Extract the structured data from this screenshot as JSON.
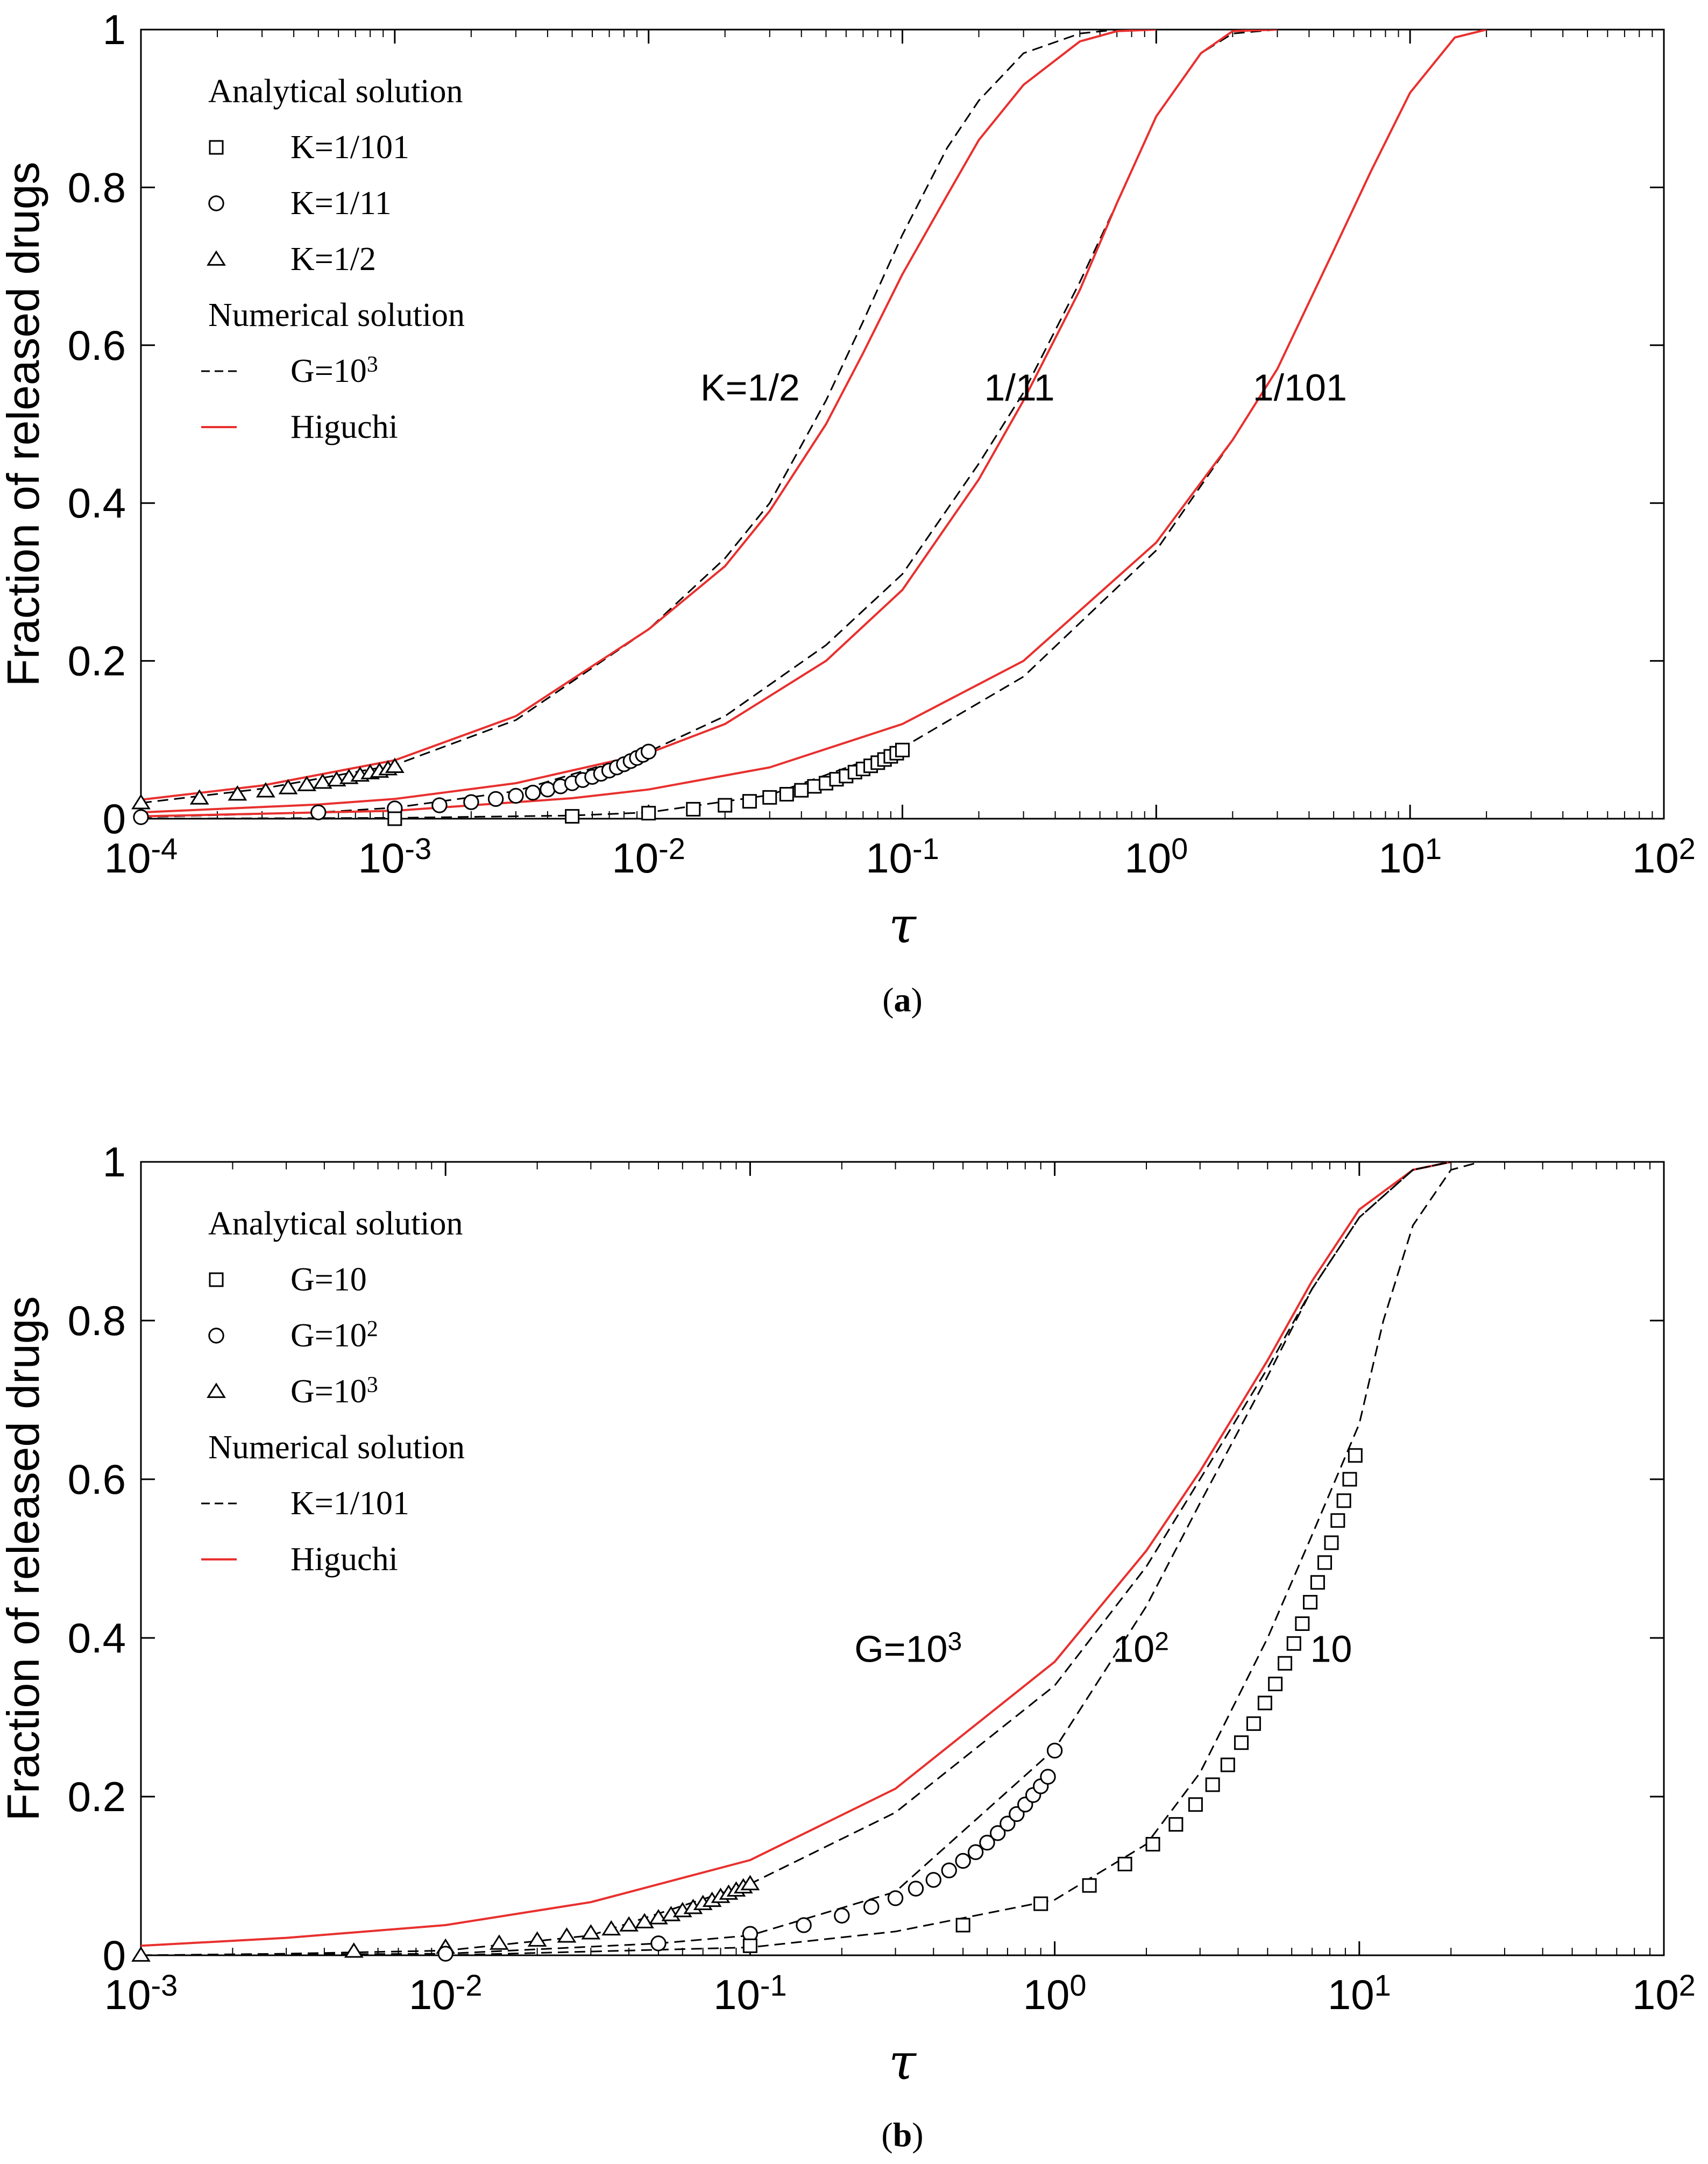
{
  "chart_data": [
    {
      "type": "line",
      "panel": "a",
      "caption": "(a)",
      "xlabel": "τ",
      "ylabel": "Fraction of released drugs",
      "xscale": "log",
      "xlim": [
        0.0001,
        100
      ],
      "ylim": [
        0,
        1
      ],
      "grid": false,
      "legend_position": "top-left",
      "xtick_labels": [
        {
          "base": "10",
          "exp": "-4"
        },
        {
          "base": "10",
          "exp": "-3"
        },
        {
          "base": "10",
          "exp": "-2"
        },
        {
          "base": "10",
          "exp": "-1"
        },
        {
          "base": "10",
          "exp": "0"
        },
        {
          "base": "10",
          "exp": "1"
        },
        {
          "base": "10",
          "exp": "2"
        }
      ],
      "ytick_labels": [
        "0",
        "0.2",
        "0.4",
        "0.6",
        "0.8",
        "1"
      ],
      "legend": {
        "analytical_title": "Analytical solution",
        "analytical_entries": [
          {
            "marker": "square",
            "text": "K=1/101"
          },
          {
            "marker": "circle",
            "text": "K=1/11"
          },
          {
            "marker": "triangle",
            "text": "K=1/2"
          }
        ],
        "numerical_title": "Numerical solution",
        "numerical_entries": [
          {
            "style": "dashed",
            "text": "G=10",
            "sup": "3"
          },
          {
            "style": "red",
            "text": "Higuchi",
            "sup": ""
          }
        ]
      },
      "series": [
        {
          "name": "K=1/2 numerical (G=10^3)",
          "style": "dashed",
          "x": [
            0.0001,
            0.0003,
            0.001,
            0.003,
            0.01,
            0.02,
            0.03,
            0.05,
            0.07,
            0.1,
            0.15,
            0.2,
            0.3,
            0.5,
            0.7,
            1.0
          ],
          "y": [
            0.02,
            0.038,
            0.068,
            0.125,
            0.24,
            0.33,
            0.4,
            0.53,
            0.63,
            0.74,
            0.85,
            0.91,
            0.97,
            0.995,
            1.0,
            1.0
          ]
        },
        {
          "name": "K=1/2 Higuchi",
          "style": "red",
          "x": [
            0.0001,
            0.0003,
            0.001,
            0.003,
            0.01,
            0.02,
            0.03,
            0.05,
            0.07,
            0.1,
            0.15,
            0.2,
            0.3,
            0.5,
            0.7,
            1.0
          ],
          "y": [
            0.024,
            0.042,
            0.074,
            0.13,
            0.24,
            0.32,
            0.39,
            0.5,
            0.59,
            0.69,
            0.79,
            0.86,
            0.93,
            0.985,
            0.998,
            1.0
          ]
        },
        {
          "name": "K=1/11 numerical (G=10^3)",
          "style": "dashed",
          "x": [
            0.0001,
            0.0005,
            0.001,
            0.003,
            0.01,
            0.02,
            0.05,
            0.1,
            0.2,
            0.3,
            0.5,
            0.7,
            1.0,
            1.5,
            2.0,
            3.0
          ],
          "y": [
            0.002,
            0.008,
            0.014,
            0.035,
            0.085,
            0.13,
            0.22,
            0.31,
            0.45,
            0.54,
            0.68,
            0.78,
            0.89,
            0.97,
            0.995,
            1.0
          ]
        },
        {
          "name": "K=1/11 Higuchi",
          "style": "red",
          "x": [
            0.0001,
            0.0005,
            0.001,
            0.003,
            0.01,
            0.02,
            0.05,
            0.1,
            0.2,
            0.3,
            0.5,
            0.7,
            1.0,
            1.5,
            2.0,
            3.0
          ],
          "y": [
            0.008,
            0.018,
            0.025,
            0.045,
            0.083,
            0.12,
            0.2,
            0.29,
            0.43,
            0.53,
            0.67,
            0.78,
            0.89,
            0.97,
            0.998,
            1.0
          ]
        },
        {
          "name": "K=1/101 numerical (G=10^3)",
          "style": "dashed",
          "x": [
            0.0001,
            0.001,
            0.005,
            0.01,
            0.03,
            0.1,
            0.3,
            1.0,
            2.0,
            3.0,
            5.0,
            7.0,
            10.0,
            15.0,
            20.0
          ],
          "y": [
            0.0,
            0.001,
            0.004,
            0.008,
            0.03,
            0.09,
            0.18,
            0.34,
            0.48,
            0.57,
            0.72,
            0.82,
            0.92,
            0.99,
            1.0
          ]
        },
        {
          "name": "K=1/101 Higuchi",
          "style": "red",
          "x": [
            0.0001,
            0.001,
            0.005,
            0.01,
            0.03,
            0.1,
            0.3,
            1.0,
            2.0,
            3.0,
            5.0,
            7.0,
            10.0,
            15.0,
            20.0
          ],
          "y": [
            0.003,
            0.01,
            0.026,
            0.037,
            0.065,
            0.12,
            0.2,
            0.35,
            0.48,
            0.57,
            0.72,
            0.82,
            0.92,
            0.99,
            1.0
          ]
        },
        {
          "name": "K=1/2 analytical",
          "marker": "triangle",
          "x": [
            0.0001,
            0.00017,
            0.00024,
            0.00031,
            0.00038,
            0.00045,
            0.00052,
            0.00059,
            0.00066,
            0.00073,
            0.0008,
            0.00087,
            0.00094,
            0.001
          ],
          "y": [
            0.02,
            0.026,
            0.031,
            0.035,
            0.039,
            0.043,
            0.046,
            0.049,
            0.052,
            0.055,
            0.058,
            0.06,
            0.063,
            0.066
          ]
        },
        {
          "name": "K=1/11 analytical",
          "marker": "circle",
          "x": [
            0.0001,
            0.0005,
            0.001,
            0.0015,
            0.002,
            0.0025,
            0.003,
            0.0035,
            0.004,
            0.0045,
            0.005,
            0.0055,
            0.006,
            0.0065,
            0.007,
            0.0075,
            0.008,
            0.0085,
            0.009,
            0.0095,
            0.01
          ],
          "y": [
            0.002,
            0.008,
            0.013,
            0.017,
            0.021,
            0.025,
            0.029,
            0.033,
            0.037,
            0.041,
            0.045,
            0.049,
            0.053,
            0.057,
            0.061,
            0.065,
            0.069,
            0.073,
            0.077,
            0.081,
            0.085
          ]
        },
        {
          "name": "K=1/101 analytical",
          "marker": "square",
          "x": [
            0.001,
            0.005,
            0.01,
            0.015,
            0.02,
            0.025,
            0.03,
            0.035,
            0.04,
            0.045,
            0.05,
            0.055,
            0.06,
            0.065,
            0.07,
            0.075,
            0.08,
            0.085,
            0.09,
            0.095,
            0.1
          ],
          "y": [
            0.0,
            0.003,
            0.007,
            0.012,
            0.017,
            0.022,
            0.027,
            0.031,
            0.036,
            0.041,
            0.045,
            0.05,
            0.054,
            0.059,
            0.063,
            0.067,
            0.071,
            0.075,
            0.079,
            0.083,
            0.087
          ]
        }
      ],
      "annotations": [
        {
          "text": "K=1/2",
          "x": 0.016,
          "y": 0.53
        },
        {
          "text": "1/11",
          "x": 0.21,
          "y": 0.53
        },
        {
          "text": "1/101",
          "x": 2.4,
          "y": 0.53
        }
      ]
    },
    {
      "type": "line",
      "panel": "b",
      "caption": "(b)",
      "xlabel": "τ",
      "ylabel": "Fraction of released drugs",
      "xscale": "log",
      "xlim": [
        0.001,
        100
      ],
      "ylim": [
        0,
        1
      ],
      "grid": false,
      "legend_position": "top-left",
      "xtick_labels": [
        {
          "base": "10",
          "exp": "-3"
        },
        {
          "base": "10",
          "exp": "-2"
        },
        {
          "base": "10",
          "exp": "-1"
        },
        {
          "base": "10",
          "exp": "0"
        },
        {
          "base": "10",
          "exp": "1"
        },
        {
          "base": "10",
          "exp": "2"
        }
      ],
      "ytick_labels": [
        "0",
        "0.2",
        "0.4",
        "0.6",
        "0.8",
        "1"
      ],
      "legend": {
        "analytical_title": "Analytical solution",
        "analytical_entries": [
          {
            "marker": "square",
            "text": "G=10",
            "sup": ""
          },
          {
            "marker": "circle",
            "text": "G=10",
            "sup": "2"
          },
          {
            "marker": "triangle",
            "text": "G=10",
            "sup": "3"
          }
        ],
        "numerical_title": "Numerical solution",
        "numerical_entries": [
          {
            "style": "dashed",
            "text": "K=1/101",
            "sup": ""
          },
          {
            "style": "red",
            "text": "Higuchi",
            "sup": ""
          }
        ]
      },
      "series": [
        {
          "name": "Higuchi",
          "style": "red",
          "x": [
            0.001,
            0.003,
            0.01,
            0.03,
            0.1,
            0.3,
            1.0,
            2.0,
            3.0,
            5.0,
            7.0,
            10.0,
            15.0,
            20.0
          ],
          "y": [
            0.012,
            0.022,
            0.038,
            0.067,
            0.12,
            0.21,
            0.37,
            0.51,
            0.61,
            0.75,
            0.85,
            0.94,
            0.99,
            1.0
          ]
        },
        {
          "name": "G=10^3 numerical",
          "style": "dashed",
          "x": [
            0.001,
            0.003,
            0.01,
            0.03,
            0.1,
            0.3,
            1.0,
            2.0,
            3.0,
            5.0,
            7.0,
            10.0,
            15.0,
            20.0
          ],
          "y": [
            0.0,
            0.002,
            0.006,
            0.025,
            0.09,
            0.18,
            0.34,
            0.49,
            0.6,
            0.74,
            0.84,
            0.93,
            0.99,
            1.0
          ]
        },
        {
          "name": "G=10^2 numerical",
          "style": "dashed",
          "x": [
            0.001,
            0.01,
            0.05,
            0.1,
            0.3,
            1.0,
            2.0,
            3.0,
            5.0,
            7.0,
            10.0,
            15.0,
            20.0
          ],
          "y": [
            0.0,
            0.002,
            0.015,
            0.025,
            0.08,
            0.26,
            0.44,
            0.57,
            0.73,
            0.84,
            0.93,
            0.99,
            1.0
          ]
        },
        {
          "name": "G=10 numerical",
          "style": "dashed",
          "x": [
            0.001,
            0.01,
            0.1,
            0.3,
            1.0,
            2.0,
            3.0,
            5.0,
            7.0,
            10.0,
            12.0,
            15.0,
            20.0,
            25.0
          ],
          "y": [
            0.0,
            0.0,
            0.01,
            0.03,
            0.07,
            0.14,
            0.23,
            0.4,
            0.53,
            0.67,
            0.8,
            0.92,
            0.99,
            1.0
          ]
        },
        {
          "name": "G=10^3 analytical",
          "marker": "triangle",
          "x": [
            0.001,
            0.005,
            0.01,
            0.015,
            0.02,
            0.025,
            0.03,
            0.035,
            0.04,
            0.045,
            0.05,
            0.055,
            0.06,
            0.065,
            0.07,
            0.075,
            0.08,
            0.085,
            0.09,
            0.095,
            0.1
          ],
          "y": [
            0.0,
            0.005,
            0.01,
            0.015,
            0.019,
            0.024,
            0.028,
            0.033,
            0.038,
            0.042,
            0.047,
            0.051,
            0.056,
            0.06,
            0.065,
            0.069,
            0.074,
            0.078,
            0.082,
            0.086,
            0.09
          ]
        },
        {
          "name": "G=10^2 analytical",
          "marker": "circle",
          "x": [
            0.01,
            0.05,
            0.1,
            0.15,
            0.2,
            0.25,
            0.3,
            0.35,
            0.4,
            0.45,
            0.5,
            0.55,
            0.6,
            0.65,
            0.7,
            0.75,
            0.8,
            0.85,
            0.9,
            0.95,
            1.0
          ],
          "y": [
            0.002,
            0.015,
            0.027,
            0.038,
            0.05,
            0.061,
            0.072,
            0.084,
            0.095,
            0.107,
            0.119,
            0.13,
            0.142,
            0.154,
            0.166,
            0.178,
            0.19,
            0.202,
            0.213,
            0.225,
            0.258
          ]
        },
        {
          "name": "G=10 analytical",
          "marker": "square",
          "x": [
            0.1,
            0.5,
            0.9,
            1.3,
            1.7,
            2.1,
            2.5,
            2.9,
            3.3,
            3.7,
            4.1,
            4.5,
            4.9,
            5.3,
            5.7,
            6.1,
            6.5,
            6.9,
            7.3,
            7.7,
            8.1,
            8.5,
            8.9,
            9.3,
            9.7
          ],
          "y": [
            0.012,
            0.038,
            0.065,
            0.088,
            0.115,
            0.14,
            0.165,
            0.19,
            0.215,
            0.24,
            0.268,
            0.292,
            0.318,
            0.342,
            0.368,
            0.393,
            0.418,
            0.445,
            0.47,
            0.495,
            0.52,
            0.548,
            0.573,
            0.6,
            0.63
          ]
        }
      ],
      "annotations": [
        {
          "text": "G=10",
          "sup": "3",
          "x": 0.22,
          "y": 0.37
        },
        {
          "text": "10",
          "sup": "2",
          "x": 1.55,
          "y": 0.37
        },
        {
          "text": "10",
          "sup": "",
          "x": 6.9,
          "y": 0.37
        }
      ]
    }
  ]
}
